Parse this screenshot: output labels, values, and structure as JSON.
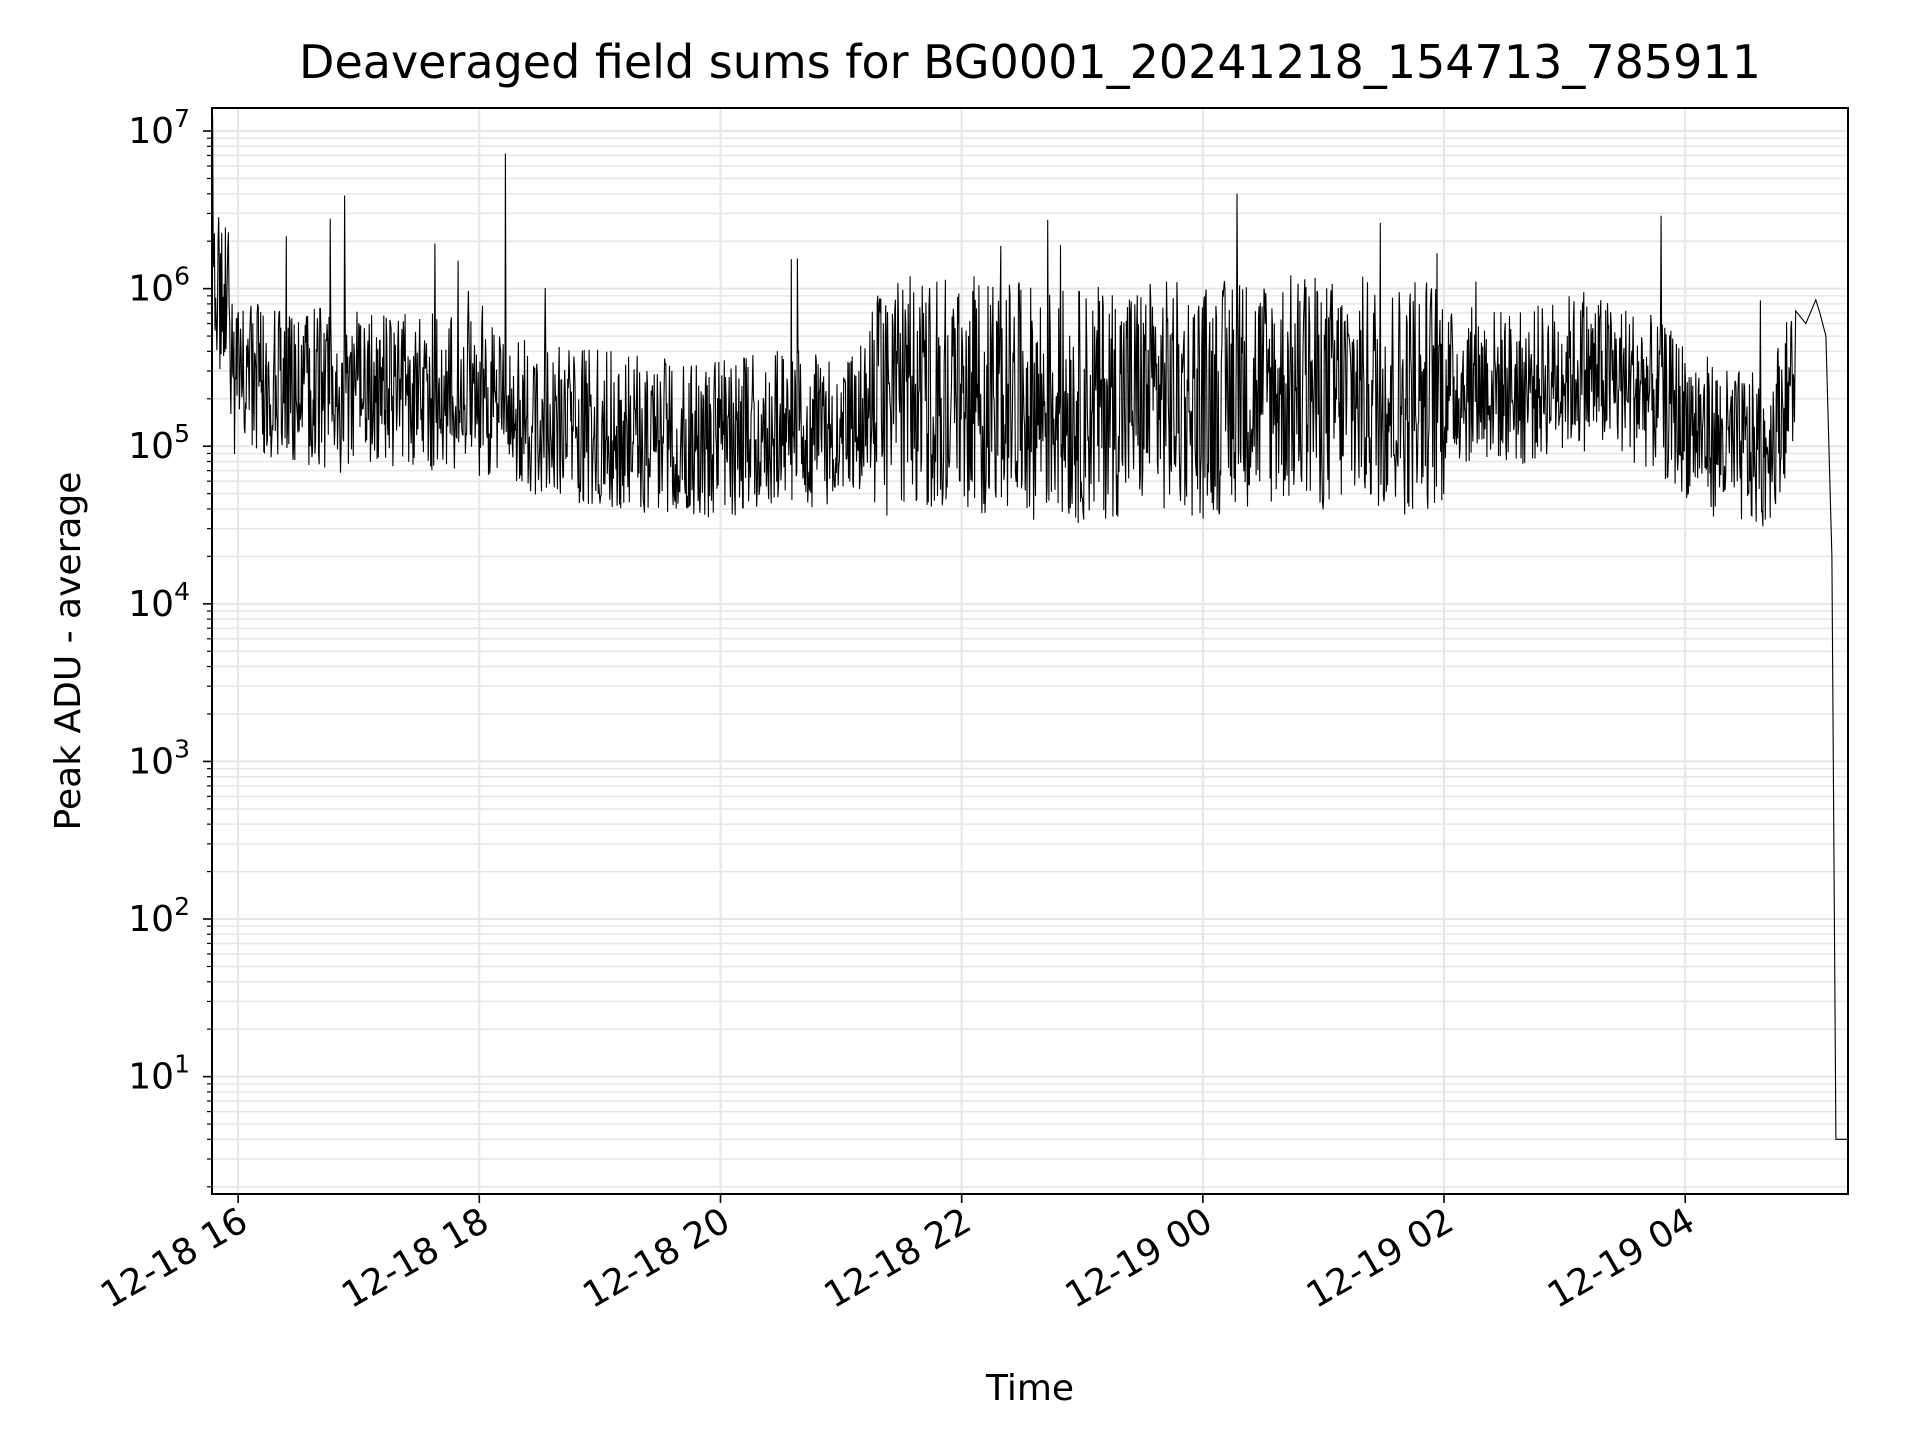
{
  "chart_data": {
    "type": "line",
    "title": "Deaveraged field sums for BG0001_20241218_154713_785911",
    "xlabel": "Time",
    "ylabel": "Peak ADU - average",
    "yscale": "log",
    "ylim": [
      1.8,
      14000000
    ],
    "xlim": [
      "2024-12-18 15:47",
      "2024-12-19 05:21"
    ],
    "grid": "major and minor",
    "x_ticks": [
      {
        "value": "2024-12-18 16:00",
        "label": "12-18 16"
      },
      {
        "value": "2024-12-18 18:00",
        "label": "12-18 18"
      },
      {
        "value": "2024-12-18 20:00",
        "label": "12-18 20"
      },
      {
        "value": "2024-12-18 22:00",
        "label": "12-18 22"
      },
      {
        "value": "2024-12-19 00:00",
        "label": "12-19 00"
      },
      {
        "value": "2024-12-19 02:00",
        "label": "12-19 02"
      },
      {
        "value": "2024-12-19 04:00",
        "label": "12-19 04"
      }
    ],
    "y_ticks": [
      {
        "value": 10,
        "base": "10",
        "exp": "1"
      },
      {
        "value": 100,
        "base": "10",
        "exp": "2"
      },
      {
        "value": 1000,
        "base": "10",
        "exp": "3"
      },
      {
        "value": 10000,
        "base": "10",
        "exp": "4"
      },
      {
        "value": 100000,
        "base": "10",
        "exp": "5"
      },
      {
        "value": 1000000,
        "base": "10",
        "exp": "6"
      },
      {
        "value": 10000000,
        "base": "10",
        "exp": "7"
      }
    ],
    "series": [
      {
        "color": "#000000",
        "x": [
          "2024-12-18 15:47",
          "2024-12-18 15:52",
          "2024-12-18 15:55",
          "2024-12-18 15:57",
          "2024-12-18 16:00",
          "2024-12-18 16:10",
          "2024-12-18 16:20",
          "2024-12-18 16:30",
          "2024-12-18 16:40",
          "2024-12-18 16:50",
          "2024-12-18 17:00",
          "2024-12-18 17:15",
          "2024-12-18 17:30",
          "2024-12-18 17:45",
          "2024-12-18 18:00",
          "2024-12-18 18:15",
          "2024-12-18 18:30",
          "2024-12-18 18:45",
          "2024-12-18 19:00",
          "2024-12-18 19:20",
          "2024-12-18 19:40",
          "2024-12-18 20:00",
          "2024-12-18 20:20",
          "2024-12-18 20:40",
          "2024-12-18 21:00",
          "2024-12-18 21:20",
          "2024-12-18 21:40",
          "2024-12-18 22:00",
          "2024-12-18 22:20",
          "2024-12-18 22:40",
          "2024-12-18 23:00",
          "2024-12-18 23:20",
          "2024-12-18 23:40",
          "2024-12-19 00:00",
          "2024-12-19 00:20",
          "2024-12-19 00:40",
          "2024-12-19 01:00",
          "2024-12-19 01:20",
          "2024-12-19 01:40",
          "2024-12-19 02:00",
          "2024-12-19 02:20",
          "2024-12-19 02:40",
          "2024-12-19 03:00",
          "2024-12-19 03:20",
          "2024-12-19 03:40",
          "2024-12-19 04:00",
          "2024-12-19 04:20",
          "2024-12-19 04:40",
          "2024-12-19 04:55",
          "2024-12-19 05:00",
          "2024-12-19 05:05",
          "2024-12-19 05:07",
          "2024-12-19 05:10",
          "2024-12-19 05:13",
          "2024-12-19 05:15",
          "2024-12-19 05:21"
        ],
        "values": [
          1100000,
          900000,
          800000,
          300000,
          250000,
          260000,
          230000,
          220000,
          240000,
          210000,
          250000,
          220000,
          230000,
          210000,
          200000,
          160000,
          150000,
          140000,
          130000,
          120000,
          115000,
          110000,
          125000,
          130000,
          115000,
          200000,
          230000,
          220000,
          200000,
          190000,
          180000,
          200000,
          210000,
          190000,
          220000,
          230000,
          210000,
          220000,
          200000,
          230000,
          250000,
          230000,
          300000,
          280000,
          230000,
          150000,
          100000,
          90000,
          300000,
          600000,
          850000,
          700000,
          500000,
          20000,
          4,
          4
        ],
        "variability": "dense noise ~factor 2-10 around the trend, many spikes to 1e6-7e6"
      }
    ],
    "annotations": {
      "spikes": [
        {
          "x": "2024-12-18 16:53",
          "y": 3900000
        },
        {
          "x": "2024-12-18 18:13",
          "y": 7200000
        },
        {
          "x": "2024-12-19 00:17",
          "y": 4000000
        },
        {
          "x": "2024-12-19 03:48",
          "y": 2900000
        }
      ]
    }
  }
}
